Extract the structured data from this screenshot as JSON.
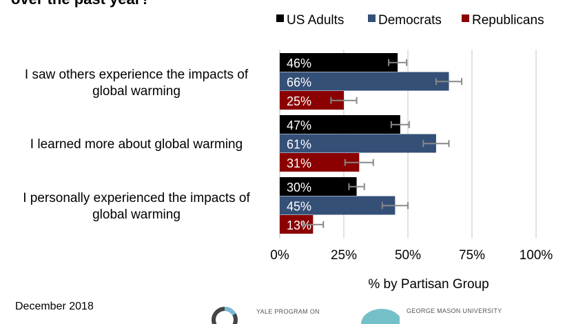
{
  "title": "over the past year?",
  "footer": {
    "date": "December 2018"
  },
  "logos": {
    "yale": "YALE PROGRAM ON",
    "gmu": "GEORGE MASON UNIVERSITY"
  },
  "chart_data": {
    "type": "bar",
    "orientation": "horizontal",
    "categories": [
      "I saw others experience the impacts of global warming",
      "I learned more about global warming",
      "I personally experienced the impacts of global warming"
    ],
    "series": [
      {
        "name": "US Adults",
        "color": "#000000",
        "values": [
          46,
          47,
          30
        ],
        "error": [
          3.5,
          3.5,
          3
        ]
      },
      {
        "name": "Democrats",
        "color": "#355077",
        "values": [
          66,
          61,
          45
        ],
        "error": [
          5,
          5,
          5
        ]
      },
      {
        "name": "Republicans",
        "color": "#8b0000",
        "values": [
          25,
          31,
          13
        ],
        "error": [
          5,
          5.5,
          4
        ]
      }
    ],
    "data_labels": [
      [
        "46%",
        "47%",
        "30%"
      ],
      [
        "66%",
        "61%",
        "45%"
      ],
      [
        "25%",
        "31%",
        "13%"
      ]
    ],
    "xlim": [
      0,
      100
    ],
    "xticks": [
      "0%",
      "25%",
      "50%",
      "75%",
      "100%"
    ],
    "xlabel": "% by Partisan Group",
    "grid": true,
    "legend": "top-right"
  }
}
